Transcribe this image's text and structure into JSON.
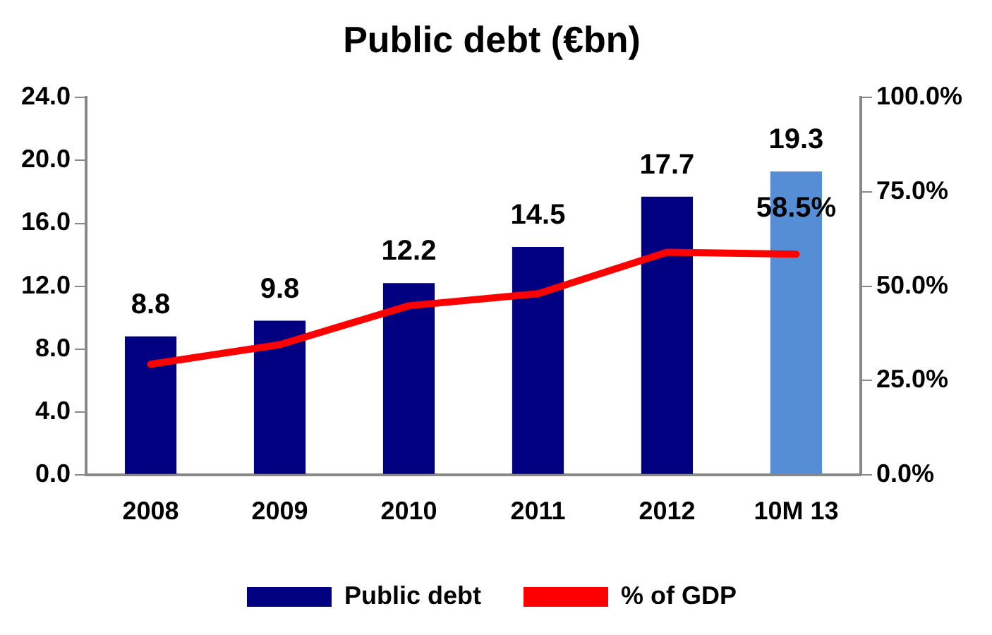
{
  "chart_data": {
    "type": "bar",
    "title": "Public debt (€bn)",
    "categories": [
      "2008",
      "2009",
      "2010",
      "2011",
      "2012",
      "10M 13"
    ],
    "series": [
      {
        "name": "Public debt",
        "color": "#000080",
        "colors": [
          "#000080",
          "#000080",
          "#000080",
          "#000080",
          "#000080",
          "#558ed5"
        ],
        "values": [
          8.8,
          9.8,
          12.2,
          14.5,
          17.7,
          19.3
        ]
      },
      {
        "name": "% of GDP",
        "type": "line",
        "axis": "y2",
        "color": "#ff0000",
        "values": [
          29.3,
          34.5,
          44.8,
          48.0,
          59.0,
          58.5
        ],
        "value_labels": [
          null,
          null,
          null,
          null,
          null,
          "58.5%"
        ]
      }
    ],
    "data_labels": true,
    "ylim": [
      0,
      24
    ],
    "yticks": [
      {
        "value": 0,
        "label": "0.0"
      },
      {
        "value": 4,
        "label": "4.0"
      },
      {
        "value": 8,
        "label": "8.0"
      },
      {
        "value": 12,
        "label": "12.0"
      },
      {
        "value": 16,
        "label": "16.0"
      },
      {
        "value": 20,
        "label": "20.0"
      },
      {
        "value": 24,
        "label": "24.0"
      }
    ],
    "y2lim": [
      0,
      100
    ],
    "y2ticks": [
      {
        "value": 0,
        "label": "0.0%"
      },
      {
        "value": 25,
        "label": "25.0%"
      },
      {
        "value": 50,
        "label": "50.0%"
      },
      {
        "value": 75,
        "label": "75.0%"
      },
      {
        "value": 100,
        "label": "100.0%"
      }
    ],
    "grid": false,
    "legend": "bottom",
    "marker": "none",
    "line_style": "solid"
  }
}
